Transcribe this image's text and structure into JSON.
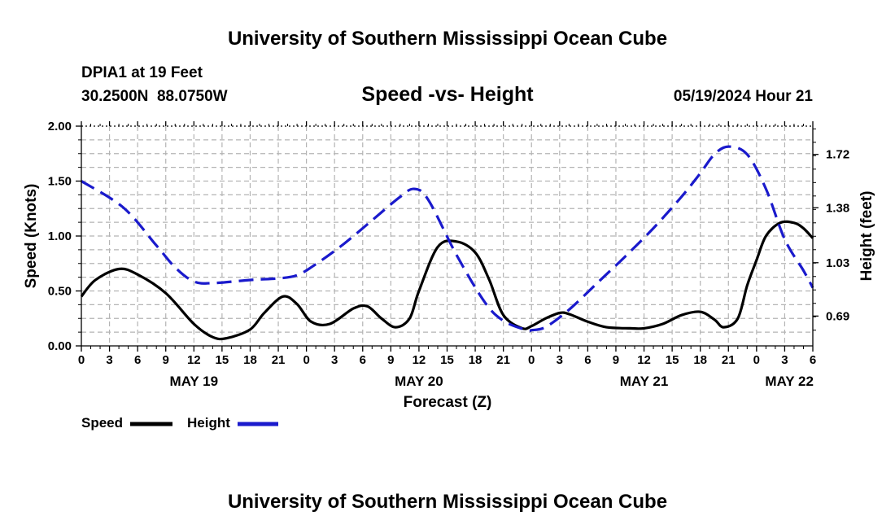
{
  "header": {
    "title": "University of Southern Mississippi Ocean Cube",
    "station": "DPIA1 at 19 Feet",
    "location": "30.2500N  88.0750W",
    "chart_title": "Speed -vs- Height",
    "timestamp": "05/19/2024 Hour 21"
  },
  "footer": {
    "title": "University of Southern Mississippi Ocean Cube"
  },
  "legend": {
    "speed_label": "Speed",
    "height_label": "Height"
  },
  "colors": {
    "speed": "#000000",
    "height": "#1a1acc",
    "grid": "#b4b4b4"
  },
  "chart_data": {
    "type": "line",
    "title": "Speed -vs- Height",
    "xlabel": "Forecast (Z)",
    "ylabel": "Speed (Knots)",
    "y2label": "Height (feet)",
    "xlim": [
      0,
      78
    ],
    "ylim": [
      0,
      2.0
    ],
    "y2lim": [
      0.5,
      1.9
    ],
    "x_tick_values": [
      0,
      3,
      6,
      9,
      12,
      15,
      18,
      21,
      24,
      27,
      30,
      33,
      36,
      39,
      42,
      45,
      48,
      51,
      54,
      57,
      60,
      63,
      66,
      69,
      72,
      75,
      78
    ],
    "x_tick_labels": [
      "0",
      "3",
      "6",
      "9",
      "12",
      "15",
      "18",
      "21",
      "0",
      "3",
      "6",
      "9",
      "12",
      "15",
      "18",
      "21",
      "0",
      "3",
      "6",
      "9",
      "12",
      "15",
      "18",
      "21",
      "0",
      "3",
      "6"
    ],
    "date_labels": [
      {
        "label": "MAY 19",
        "x": 12
      },
      {
        "label": "MAY 20",
        "x": 36
      },
      {
        "label": "MAY 21",
        "x": 60
      },
      {
        "label": "MAY 22",
        "x": 75.5
      }
    ],
    "y_ticks": [
      "0.00",
      "0.50",
      "1.00",
      "1.50",
      "2.00"
    ],
    "y_tick_values": [
      0,
      0.5,
      1.0,
      1.5,
      2.0
    ],
    "y2_ticks": [
      "0.69",
      "1.03",
      "1.38",
      "1.72"
    ],
    "y2_tick_values": [
      0.69,
      1.03,
      1.38,
      1.72
    ],
    "series": [
      {
        "name": "Speed",
        "axis": "left",
        "style": "solid",
        "x": [
          0,
          1.5,
          4,
          6,
          9,
          12,
          14,
          15.5,
          18,
          19.5,
          21.5,
          23,
          24.5,
          26.5,
          29,
          30.5,
          32,
          33.5,
          35,
          36,
          38,
          40,
          42,
          43.5,
          45,
          47,
          48,
          49.5,
          51,
          52,
          54,
          56,
          58.5,
          60,
          62,
          64,
          66,
          67.5,
          68.5,
          70,
          71,
          72,
          73,
          74.5,
          76,
          77,
          78
        ],
        "values": [
          0.45,
          0.6,
          0.7,
          0.65,
          0.48,
          0.2,
          0.08,
          0.07,
          0.15,
          0.3,
          0.45,
          0.38,
          0.22,
          0.2,
          0.34,
          0.36,
          0.25,
          0.17,
          0.25,
          0.5,
          0.9,
          0.95,
          0.85,
          0.6,
          0.28,
          0.16,
          0.18,
          0.25,
          0.3,
          0.29,
          0.22,
          0.17,
          0.16,
          0.16,
          0.2,
          0.28,
          0.31,
          0.24,
          0.17,
          0.25,
          0.55,
          0.78,
          1.0,
          1.12,
          1.12,
          1.07,
          0.98
        ]
      },
      {
        "name": "Height",
        "axis": "right",
        "style": "dashed",
        "x": [
          0,
          4.5,
          8,
          10,
          12,
          14,
          18,
          21,
          23,
          25,
          28,
          31,
          34,
          35.5,
          37,
          40,
          43,
          45,
          47.5,
          48,
          49.5,
          52,
          55,
          58,
          61,
          64,
          66,
          67.5,
          69,
          71,
          73,
          75,
          77,
          78
        ],
        "values": [
          1.55,
          1.38,
          1.14,
          1.0,
          0.91,
          0.9,
          0.92,
          0.93,
          0.95,
          1.02,
          1.15,
          1.3,
          1.45,
          1.5,
          1.43,
          1.08,
          0.78,
          0.66,
          0.6,
          0.6,
          0.62,
          0.73,
          0.9,
          1.07,
          1.25,
          1.45,
          1.6,
          1.72,
          1.77,
          1.72,
          1.5,
          1.18,
          0.98,
          0.87
        ]
      }
    ]
  }
}
